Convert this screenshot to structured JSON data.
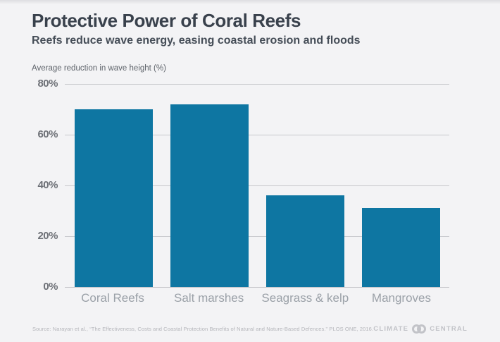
{
  "header": {
    "title": "Protective Power of Coral Reefs",
    "subtitle": "Reefs reduce wave energy, easing coastal erosion and floods"
  },
  "chart_data": {
    "type": "bar",
    "categories": [
      "Coral Reefs",
      "Salt marshes",
      "Seagrass & kelp",
      "Mangroves"
    ],
    "values": [
      70,
      72,
      36,
      31
    ],
    "title": "Protective Power of Coral Reefs",
    "xlabel": "",
    "ylabel": "Average reduction in wave height (%)",
    "ylim": [
      0,
      80
    ],
    "yticks": [
      0,
      20,
      40,
      60,
      80
    ],
    "ytick_suffix": "%",
    "grid": true,
    "legend": "none",
    "bar_color": "#0e76a2",
    "gridline_color": "#c6c7cb"
  },
  "footer": {
    "source": "Source: Narayan et al., “The Effectiveness, Costs and Coastal Protection Benefits of Natural and Nature-Based Defences.” PLOS ONE, 2016.",
    "brand_left": "CLIMATE",
    "brand_right": "CENTRAL"
  },
  "colors": {
    "background": "#f3f3f5",
    "title_text": "#39414c",
    "bar": "#0e76a2",
    "gridline": "#c6c7cb",
    "tick_label": "#6e7177",
    "category_label": "#9ba1a8",
    "source_text": "#b4b5ba"
  }
}
